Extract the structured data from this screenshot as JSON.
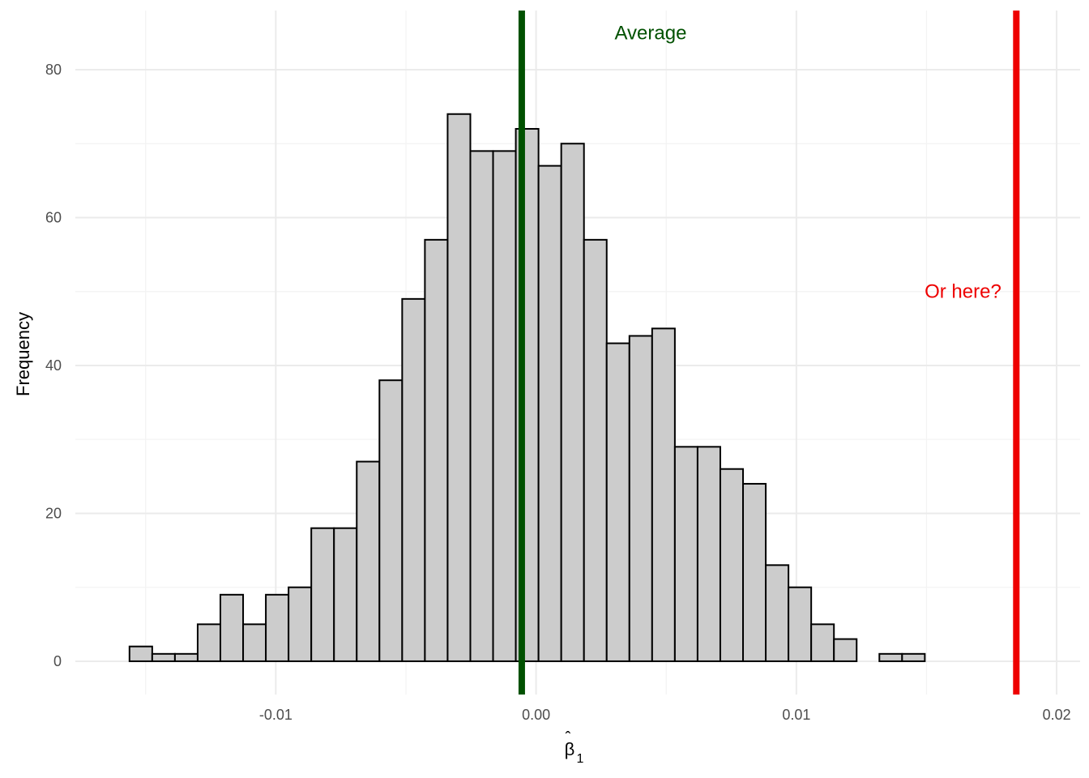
{
  "chart_data": {
    "type": "bar",
    "subtype": "histogram",
    "xlabel": "β̂1",
    "ylabel": "Frequency",
    "xlim": [
      -0.0177,
      0.0209
    ],
    "ylim": [
      -4.5,
      88
    ],
    "x_ticks": [
      {
        "value": -0.01,
        "label": "-0.01"
      },
      {
        "value": 0.0,
        "label": "0.00"
      },
      {
        "value": 0.01,
        "label": "0.01"
      },
      {
        "value": 0.02,
        "label": "0.02"
      }
    ],
    "y_ticks": [
      {
        "value": 0,
        "label": "0"
      },
      {
        "value": 20,
        "label": "20"
      },
      {
        "value": 40,
        "label": "40"
      },
      {
        "value": 60,
        "label": "60"
      },
      {
        "value": 80,
        "label": "80"
      }
    ],
    "x_minor_breaks": [
      -0.015,
      -0.005,
      0.005,
      0.015
    ],
    "y_minor_breaks": [
      10,
      30,
      50,
      70
    ],
    "grid": true,
    "bins": {
      "start": -0.01562,
      "width": 0.000873,
      "counts": [
        2,
        1,
        1,
        5,
        9,
        5,
        9,
        10,
        18,
        18,
        27,
        38,
        49,
        57,
        74,
        69,
        69,
        72,
        67,
        70,
        57,
        43,
        44,
        45,
        29,
        29,
        26,
        24,
        13,
        10,
        5,
        3,
        0,
        1,
        1,
        0,
        0,
        0,
        0,
        0
      ]
    },
    "fill_color": "#cccccc",
    "stroke_color": "#000000",
    "reference_lines": [
      {
        "x": -0.00055,
        "color": "#005100",
        "label": "Average",
        "label_x": 0.0044,
        "label_y": 85
      },
      {
        "x": 0.01845,
        "color": "#ee0000",
        "label": "Or here?",
        "label_x": 0.0164,
        "label_y": 50
      }
    ]
  }
}
